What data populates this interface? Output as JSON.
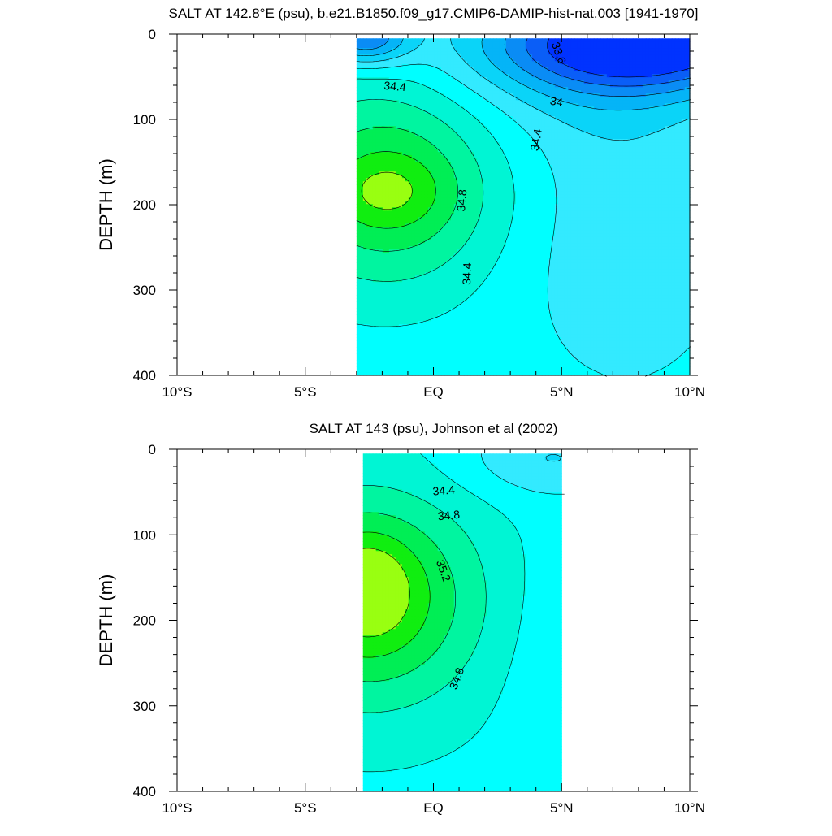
{
  "chart_data": [
    {
      "type": "contour",
      "title": "SALT AT 142.8°E (psu), b.e21.B1850.f09_g17.CMIP6-DAMIP-hist-nat.003 [1941-1970]",
      "ylabel": "DEPTH (m)",
      "xlabel": "",
      "x_ticks": [
        "10°S",
        "5°S",
        "EQ",
        "5°N",
        "10°N"
      ],
      "y_ticks": [
        "0",
        "100",
        "200",
        "300",
        "400"
      ],
      "xlim": [
        -10,
        10
      ],
      "ylim": [
        400,
        0
      ],
      "data_extent": {
        "lat": [
          -3,
          10
        ],
        "depth": [
          5,
          400
        ]
      },
      "background_salt": 34.5,
      "contour_labels": [
        {
          "text": "33.6",
          "lat": 4.9,
          "depth": 22,
          "angle": 70
        },
        {
          "text": "34.4",
          "lat": -1.5,
          "depth": 61,
          "angle": 5
        },
        {
          "text": "34",
          "lat": 4.8,
          "depth": 79,
          "angle": 10
        },
        {
          "text": "34.4",
          "lat": 4.0,
          "depth": 124,
          "angle": -80
        },
        {
          "text": "34.8",
          "lat": 1.1,
          "depth": 195,
          "angle": -85
        },
        {
          "text": "34.4",
          "lat": 1.3,
          "depth": 281,
          "angle": -88
        }
      ],
      "blobs": [
        {
          "lat": -1.8,
          "depth": 180,
          "rx": 4.2,
          "ry": 115,
          "amp": 0.75
        },
        {
          "lat": -1.8,
          "depth": 185,
          "rx": 2.0,
          "ry": 38,
          "amp": 0.25
        },
        {
          "lat": 8.3,
          "depth": 10,
          "rx": 6.0,
          "ry": 55,
          "amp": -1.25
        },
        {
          "lat": 6.5,
          "depth": 40,
          "rx": 5.0,
          "ry": 95,
          "amp": -0.35
        },
        {
          "lat": 7.5,
          "depth": 250,
          "rx": 4.0,
          "ry": 160,
          "amp": -0.25
        },
        {
          "lat": -2.7,
          "depth": 5,
          "rx": 1.8,
          "ry": 30,
          "amp": -0.9
        }
      ]
    },
    {
      "type": "contour",
      "title": "SALT AT 143 (psu), Johnson et al (2002)",
      "ylabel": "DEPTH (m)",
      "xlabel": "",
      "x_ticks": [
        "10°S",
        "5°S",
        "EQ",
        "5°N",
        "10°N"
      ],
      "y_ticks": [
        "0",
        "100",
        "200",
        "300",
        "400"
      ],
      "xlim": [
        -10,
        10
      ],
      "ylim": [
        400,
        0
      ],
      "data_extent": {
        "lat": [
          -2.75,
          5
        ],
        "depth": [
          5,
          400
        ]
      },
      "background_salt": 34.55,
      "contour_labels": [
        {
          "text": "34.4",
          "lat": 0.4,
          "depth": 48,
          "angle": -5
        },
        {
          "text": "34.8",
          "lat": 0.6,
          "depth": 77,
          "angle": -5
        },
        {
          "text": "35.2",
          "lat": 0.4,
          "depth": 142,
          "angle": 70
        },
        {
          "text": "34.8",
          "lat": 0.9,
          "depth": 268,
          "angle": -70
        }
      ],
      "blobs": [
        {
          "lat": -2.5,
          "depth": 175,
          "rx": 4.2,
          "ry": 120,
          "amp": 0.85
        },
        {
          "lat": -2.6,
          "depth": 160,
          "rx": 1.6,
          "ry": 55,
          "amp": 0.35
        },
        {
          "lat": 4.6,
          "depth": 10,
          "rx": 3.5,
          "ry": 45,
          "amp": -0.35
        },
        {
          "lat": 4.5,
          "depth": 250,
          "rx": 1.8,
          "ry": 160,
          "amp": -0.1
        }
      ]
    }
  ]
}
